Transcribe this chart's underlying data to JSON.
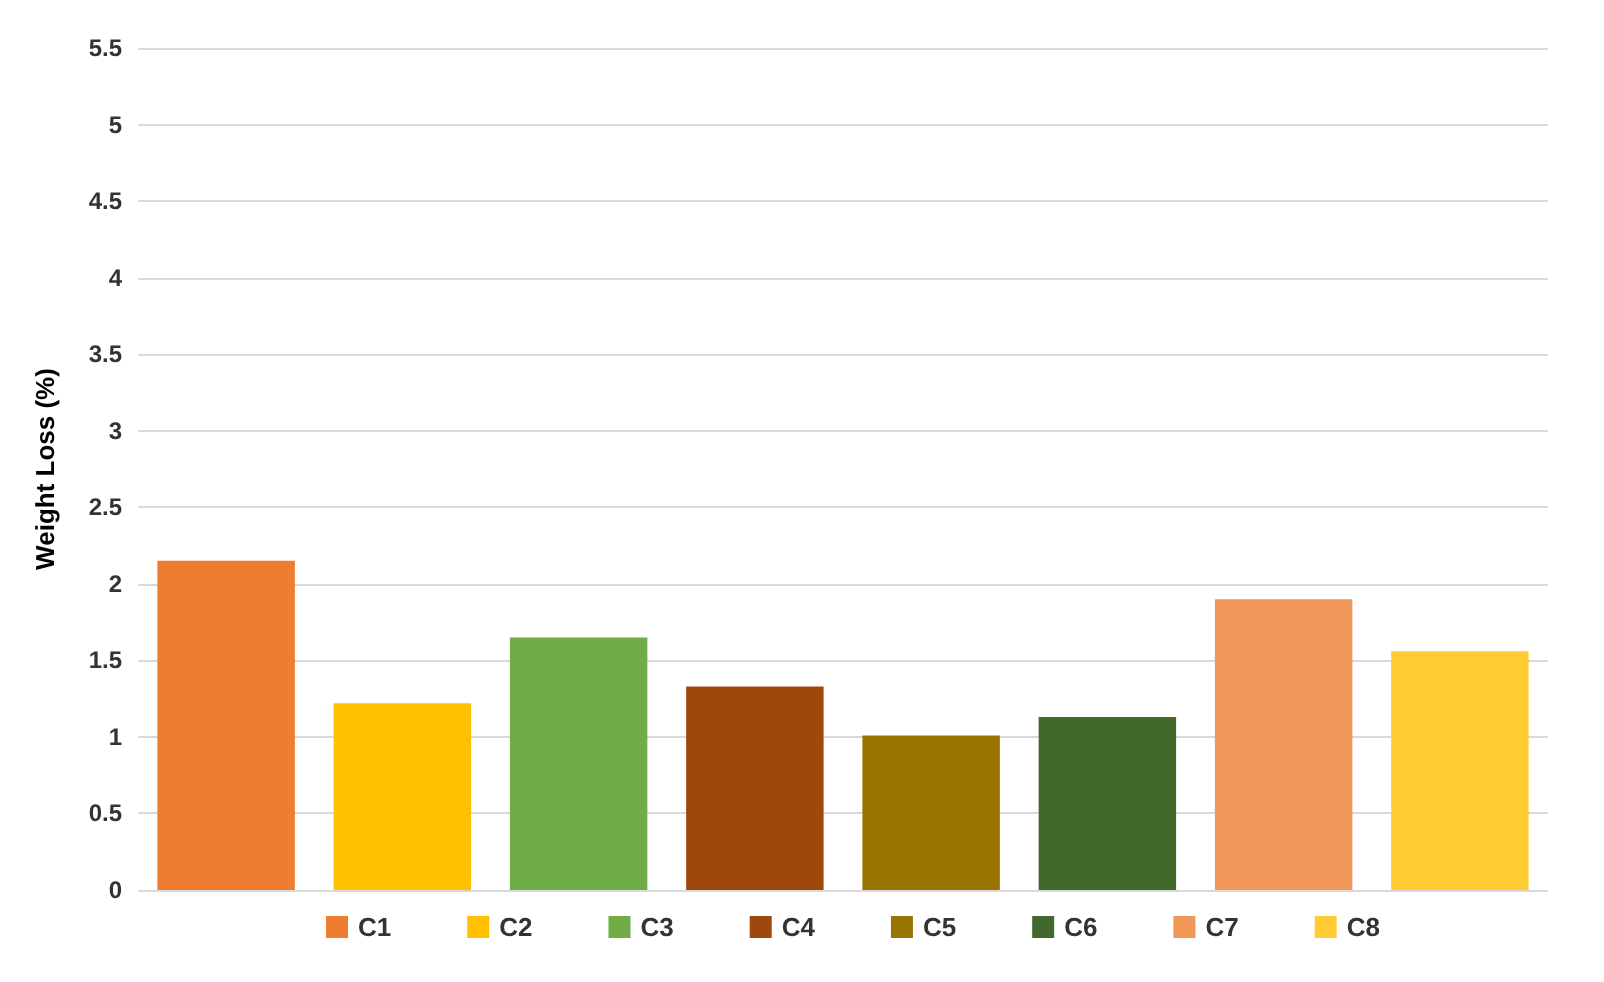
{
  "chart_data": {
    "type": "bar",
    "ylabel": "Weight Loss (%)",
    "categories": [
      null,
      null,
      null,
      null,
      null,
      null,
      null,
      null
    ],
    "series": [
      {
        "name": "C1",
        "color": "#ed7d31",
        "values": [
          2.15,
          null,
          null,
          null,
          null,
          null,
          null,
          null
        ]
      },
      {
        "name": "C2",
        "color": "#ffc000",
        "values": [
          null,
          1.22,
          null,
          null,
          null,
          null,
          null,
          null
        ]
      },
      {
        "name": "C3",
        "color": "#70ad47",
        "values": [
          null,
          null,
          1.65,
          null,
          null,
          null,
          null,
          null
        ]
      },
      {
        "name": "C4",
        "color": "#9e480e",
        "values": [
          null,
          null,
          null,
          1.33,
          null,
          null,
          null,
          null
        ]
      },
      {
        "name": "C5",
        "color": "#997300",
        "values": [
          null,
          null,
          null,
          null,
          1.01,
          null,
          null,
          null
        ]
      },
      {
        "name": "C6",
        "color": "#43682b",
        "values": [
          null,
          null,
          null,
          null,
          null,
          1.13,
          null,
          null
        ]
      },
      {
        "name": "C7",
        "color": "#f1975a",
        "values": [
          null,
          null,
          null,
          null,
          null,
          null,
          1.9,
          null
        ]
      },
      {
        "name": "C8",
        "color": "#ffcd33",
        "values": [
          null,
          null,
          null,
          null,
          null,
          null,
          null,
          1.56
        ]
      }
    ],
    "ylim": [
      0,
      5.5
    ],
    "yticks": [
      0,
      0.5,
      1,
      1.5,
      2,
      2.5,
      3,
      3.5,
      4,
      4.5,
      5,
      5.5
    ],
    "grid": "y",
    "legend": "bottom"
  }
}
